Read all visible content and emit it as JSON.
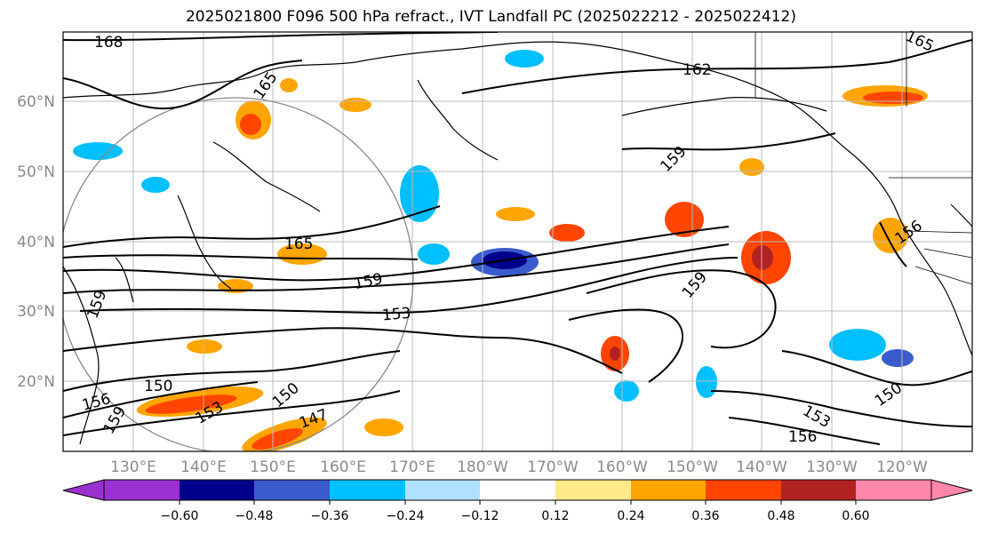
{
  "title": "2025021800 F096 500 hPa refract., IVT Landfall PC (2025022212 - 2025022412)",
  "map": {
    "lat_labels": [
      "60°N",
      "50°N",
      "40°N",
      "30°N",
      "20°N"
    ],
    "lon_labels": [
      "130°E",
      "140°E",
      "150°E",
      "160°E",
      "170°E",
      "180°W",
      "170°W",
      "160°W",
      "150°W",
      "140°W",
      "130°W",
      "120°W"
    ],
    "contour_labels": [
      "168",
      "165",
      "162",
      "165",
      "159",
      "165",
      "159",
      "159",
      "153",
      "159",
      "156",
      "150",
      "150",
      "153",
      "147",
      "159",
      "156",
      "150",
      "153",
      "156"
    ]
  },
  "colorbar": {
    "ticks": [
      "−0.60",
      "−0.48",
      "−0.36",
      "−0.24",
      "−0.12",
      "0.12",
      "0.24",
      "0.36",
      "0.48",
      "0.60"
    ],
    "colors": [
      "#9b30d0",
      "#00008b",
      "#3a5bcc",
      "#00bfff",
      "#b0e2ff",
      "#ffffff",
      "#ffe98a",
      "#ffa500",
      "#ff4500",
      "#b22222",
      "#ff88aa"
    ]
  }
}
